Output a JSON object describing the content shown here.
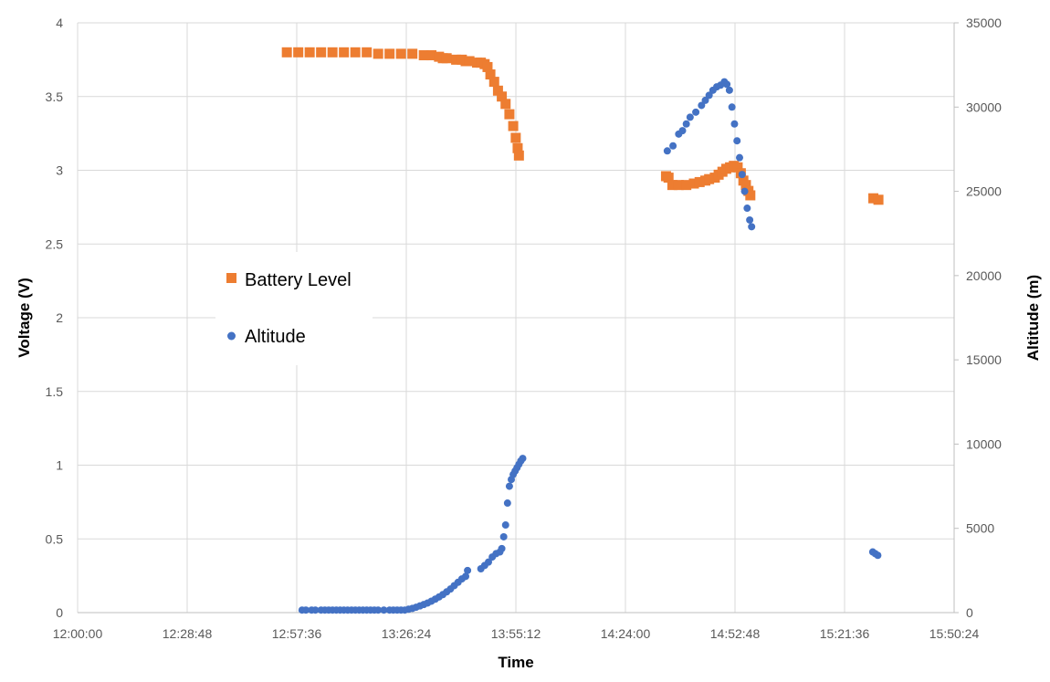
{
  "chart_data": {
    "type": "scatter",
    "title": "",
    "xlabel": "Time",
    "ylabel_left": "Voltage (V)",
    "ylabel_right": "Altitude (m)",
    "x_ticks": [
      "12:00:00",
      "12:28:48",
      "12:57:36",
      "13:26:24",
      "13:55:12",
      "14:24:00",
      "14:52:48",
      "15:21:36",
      "15:50:24"
    ],
    "y_left_ticks": [
      "0",
      "0.5",
      "1",
      "1.5",
      "2",
      "2.5",
      "3",
      "3.5",
      "4"
    ],
    "y_right_ticks": [
      "0",
      "5000",
      "10000",
      "15000",
      "20000",
      "25000",
      "30000",
      "35000"
    ],
    "xlim": [
      "12:00:00",
      "15:50:24"
    ],
    "ylim_left": [
      0,
      4
    ],
    "ylim_right": [
      0,
      35000
    ],
    "grid": true,
    "legend_position": "left-middle",
    "series": [
      {
        "name": "Battery Level",
        "axis": "left",
        "marker": "square",
        "color": "#ED7D31",
        "points": [
          [
            "12:55:00",
            3.8
          ],
          [
            "12:58:00",
            3.8
          ],
          [
            "13:01:00",
            3.8
          ],
          [
            "13:04:00",
            3.8
          ],
          [
            "13:07:00",
            3.8
          ],
          [
            "13:10:00",
            3.8
          ],
          [
            "13:13:00",
            3.8
          ],
          [
            "13:16:00",
            3.8
          ],
          [
            "13:19:00",
            3.79
          ],
          [
            "13:22:00",
            3.79
          ],
          [
            "13:25:00",
            3.79
          ],
          [
            "13:28:00",
            3.79
          ],
          [
            "13:31:00",
            3.78
          ],
          [
            "13:33:00",
            3.78
          ],
          [
            "13:35:00",
            3.77
          ],
          [
            "13:36:00",
            3.76
          ],
          [
            "13:37:00",
            3.76
          ],
          [
            "13:39:30",
            3.75
          ],
          [
            "13:41:00",
            3.75
          ],
          [
            "13:42:00",
            3.74
          ],
          [
            "13:43:00",
            3.74
          ],
          [
            "13:45:00",
            3.73
          ],
          [
            "13:46:00",
            3.73
          ],
          [
            "13:47:00",
            3.72
          ],
          [
            "13:47:45",
            3.7
          ],
          [
            "13:48:30",
            3.65
          ],
          [
            "13:49:30",
            3.6
          ],
          [
            "13:50:30",
            3.54
          ],
          [
            "13:51:30",
            3.5
          ],
          [
            "13:52:30",
            3.45
          ],
          [
            "13:53:30",
            3.38
          ],
          [
            "13:54:30",
            3.3
          ],
          [
            "13:55:10",
            3.22
          ],
          [
            "13:55:40",
            3.15
          ],
          [
            "13:56:00",
            3.1
          ],
          [
            "14:34:40",
            2.96
          ],
          [
            "14:35:20",
            2.95
          ],
          [
            "14:36:20",
            2.9
          ],
          [
            "14:38:00",
            2.9
          ],
          [
            "14:40:00",
            2.9
          ],
          [
            "14:42:00",
            2.91
          ],
          [
            "14:43:30",
            2.92
          ],
          [
            "14:45:00",
            2.93
          ],
          [
            "14:46:00",
            2.94
          ],
          [
            "14:47:30",
            2.95
          ],
          [
            "14:48:30",
            2.97
          ],
          [
            "14:49:30",
            2.99
          ],
          [
            "14:50:30",
            3.01
          ],
          [
            "14:51:30",
            3.02
          ],
          [
            "14:52:30",
            3.03
          ],
          [
            "14:53:30",
            3.02
          ],
          [
            "14:54:20",
            2.98
          ],
          [
            "14:55:00",
            2.93
          ],
          [
            "14:55:40",
            2.9
          ],
          [
            "14:56:20",
            2.86
          ],
          [
            "14:56:50",
            2.83
          ],
          [
            "15:29:10",
            2.81
          ],
          [
            "15:30:30",
            2.8
          ]
        ]
      },
      {
        "name": "Altitude",
        "axis": "right",
        "marker": "circle",
        "color": "#4472C4",
        "points": [
          [
            "12:59:00",
            150
          ],
          [
            "13:00:00",
            150
          ],
          [
            "13:01:30",
            150
          ],
          [
            "13:02:30",
            150
          ],
          [
            "13:04:00",
            150
          ],
          [
            "13:05:00",
            150
          ],
          [
            "13:06:00",
            150
          ],
          [
            "13:07:00",
            150
          ],
          [
            "13:08:00",
            150
          ],
          [
            "13:09:00",
            150
          ],
          [
            "13:10:00",
            150
          ],
          [
            "13:11:00",
            150
          ],
          [
            "13:12:00",
            150
          ],
          [
            "13:13:00",
            150
          ],
          [
            "13:14:00",
            150
          ],
          [
            "13:15:00",
            150
          ],
          [
            "13:16:00",
            150
          ],
          [
            "13:17:00",
            150
          ],
          [
            "13:18:00",
            150
          ],
          [
            "13:19:00",
            150
          ],
          [
            "13:20:30",
            150
          ],
          [
            "13:22:00",
            150
          ],
          [
            "13:23:00",
            150
          ],
          [
            "13:24:00",
            150
          ],
          [
            "13:25:00",
            150
          ],
          [
            "13:26:00",
            150
          ],
          [
            "13:27:00",
            200
          ],
          [
            "13:28:00",
            250
          ],
          [
            "13:29:00",
            320
          ],
          [
            "13:30:00",
            400
          ],
          [
            "13:31:00",
            480
          ],
          [
            "13:32:00",
            570
          ],
          [
            "13:33:00",
            680
          ],
          [
            "13:34:00",
            800
          ],
          [
            "13:35:00",
            930
          ],
          [
            "13:36:00",
            1070
          ],
          [
            "13:37:00",
            1230
          ],
          [
            "13:38:00",
            1400
          ],
          [
            "13:39:00",
            1600
          ],
          [
            "13:40:00",
            1800
          ],
          [
            "13:41:00",
            2000
          ],
          [
            "13:42:00",
            2150
          ],
          [
            "13:42:30",
            2500
          ],
          [
            "13:46:00",
            2600
          ],
          [
            "13:47:00",
            2800
          ],
          [
            "13:48:00",
            3000
          ],
          [
            "13:49:00",
            3300
          ],
          [
            "13:50:00",
            3500
          ],
          [
            "13:51:00",
            3600
          ],
          [
            "13:51:30",
            3800
          ],
          [
            "13:52:00",
            4500
          ],
          [
            "13:52:30",
            5200
          ],
          [
            "13:53:00",
            6500
          ],
          [
            "13:53:30",
            7500
          ],
          [
            "13:54:00",
            7900
          ],
          [
            "13:54:30",
            8200
          ],
          [
            "13:55:00",
            8400
          ],
          [
            "13:55:30",
            8600
          ],
          [
            "13:56:00",
            8800
          ],
          [
            "13:56:30",
            9000
          ],
          [
            "13:57:00",
            9150
          ],
          [
            "14:35:00",
            27400
          ],
          [
            "14:36:30",
            27700
          ],
          [
            "14:38:00",
            28400
          ],
          [
            "14:39:00",
            28600
          ],
          [
            "14:40:00",
            29000
          ],
          [
            "14:41:00",
            29400
          ],
          [
            "14:42:30",
            29700
          ],
          [
            "14:44:00",
            30100
          ],
          [
            "14:45:00",
            30400
          ],
          [
            "14:46:00",
            30700
          ],
          [
            "14:47:00",
            31000
          ],
          [
            "14:48:00",
            31200
          ],
          [
            "14:49:00",
            31300
          ],
          [
            "14:50:00",
            31500
          ],
          [
            "14:50:40",
            31350
          ],
          [
            "14:51:20",
            31000
          ],
          [
            "14:52:00",
            30000
          ],
          [
            "14:52:40",
            29000
          ],
          [
            "14:53:20",
            28000
          ],
          [
            "14:54:00",
            27000
          ],
          [
            "14:54:40",
            26000
          ],
          [
            "14:55:20",
            25000
          ],
          [
            "14:56:00",
            24000
          ],
          [
            "14:56:40",
            23300
          ],
          [
            "14:57:10",
            22900
          ],
          [
            "15:29:00",
            3600
          ],
          [
            "15:29:40",
            3500
          ],
          [
            "15:30:20",
            3400
          ]
        ]
      }
    ]
  }
}
